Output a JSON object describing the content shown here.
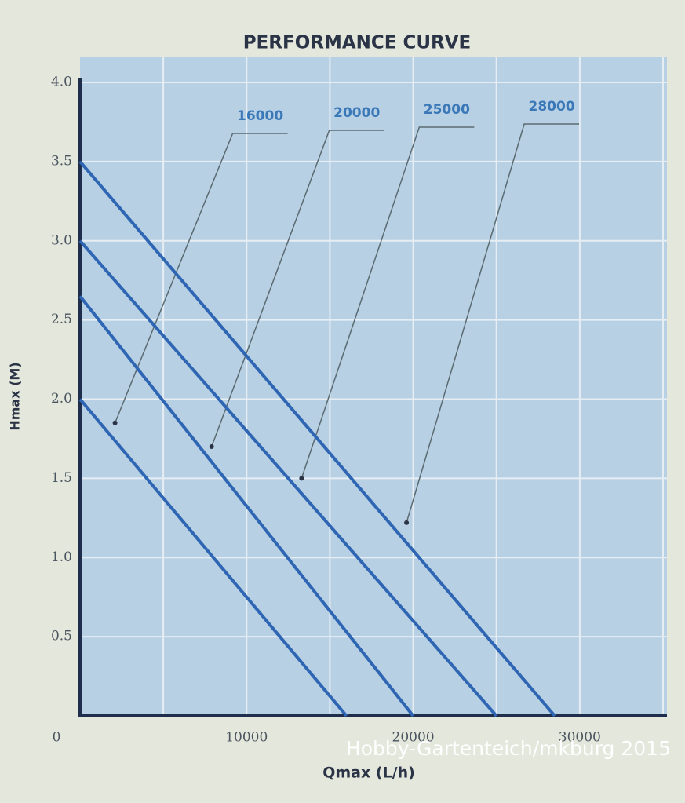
{
  "chart_data": {
    "type": "line",
    "title": "PERFORMANCE CURVE",
    "x_label": "Qmax (L/h)",
    "y_label": "Hmax (M)",
    "credit": "Hobby-Gartenteich/mkburg 2015",
    "xlim": [
      0,
      35000
    ],
    "ylim": [
      0,
      4
    ],
    "xticks": [
      0,
      10000,
      20000,
      30000
    ],
    "x_grid": [
      5000,
      10000,
      15000,
      20000,
      25000,
      30000,
      35000
    ],
    "yticks": [
      0.5,
      {
        "value": 1,
        "label": "1.0"
      },
      1.5,
      {
        "value": 2,
        "label": "2.0"
      },
      2.5,
      {
        "value": 3,
        "label": "3.0"
      },
      3.5,
      {
        "value": 4,
        "label": "4.0"
      }
    ],
    "grid": true,
    "series": [
      {
        "name": "16000",
        "color": "#2f66b3",
        "x": [
          0,
          16000
        ],
        "values": [
          2.0,
          0
        ],
        "label_point": {
          "x": 2100,
          "y": 1.85
        }
      },
      {
        "name": "20000",
        "color": "#2f66b3",
        "x": [
          0,
          20000
        ],
        "values": [
          2.65,
          0
        ],
        "label_point": {
          "x": 7900,
          "y": 1.7
        }
      },
      {
        "name": "25000",
        "color": "#2f66b3",
        "x": [
          0,
          25000
        ],
        "values": [
          3.0,
          0
        ],
        "label_point": {
          "x": 13300,
          "y": 1.5
        }
      },
      {
        "name": "28000",
        "color": "#2f66b3",
        "x": [
          0,
          28500
        ],
        "values": [
          3.5,
          0
        ],
        "label_point": {
          "x": 19600,
          "y": 1.22
        }
      }
    ]
  }
}
